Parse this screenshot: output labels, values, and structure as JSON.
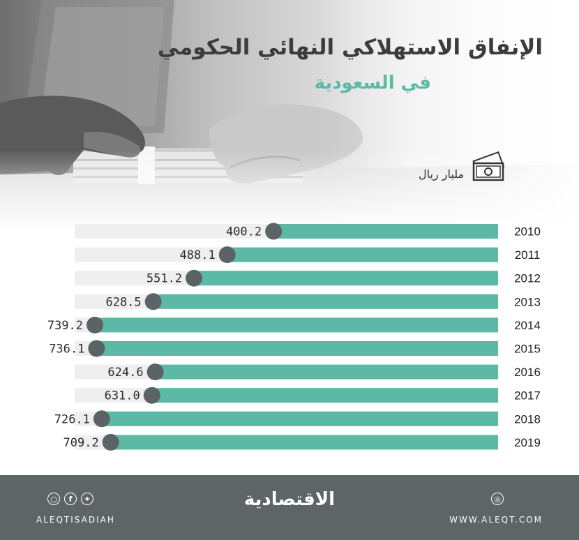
{
  "header": {
    "title": "الإنفاق الاستهلاكي النهائي الحكومي",
    "subtitle": "في السعودية",
    "unit": "مليار ريال",
    "unit_icon": "money-icon"
  },
  "chart_data": {
    "type": "bar",
    "orientation": "horizontal",
    "title": "الإنفاق الاستهلاكي النهائي الحكومي في السعودية",
    "ylabel": "مليار ريال",
    "categories": [
      "2010",
      "2011",
      "2012",
      "2013",
      "2014",
      "2015",
      "2016",
      "2017",
      "2018",
      "2019"
    ],
    "values": [
      400.2,
      488.1,
      551.2,
      628.5,
      739.2,
      736.1,
      624.6,
      631.0,
      726.1,
      709.2
    ],
    "value_labels": [
      "400.2",
      "488.1",
      "551.2",
      "628.5",
      "739.2",
      "736.1",
      "624.6",
      "631.0",
      "726.1",
      "709.2"
    ],
    "xlim": [
      0,
      800
    ],
    "bar_direction": "right-to-left",
    "grid": false,
    "colors": {
      "bar": "#5bb9a5",
      "track": "#f0efef",
      "marker": "#5c6366"
    }
  },
  "footer": {
    "brand": "الاقتصادية",
    "handle": "ALEQTISADIAH",
    "website": "WWW.ALEQT.COM",
    "social_icons": [
      "instagram-icon",
      "facebook-icon",
      "twitter-icon"
    ],
    "web_icon": "globe-icon",
    "background": "#5d6567"
  }
}
